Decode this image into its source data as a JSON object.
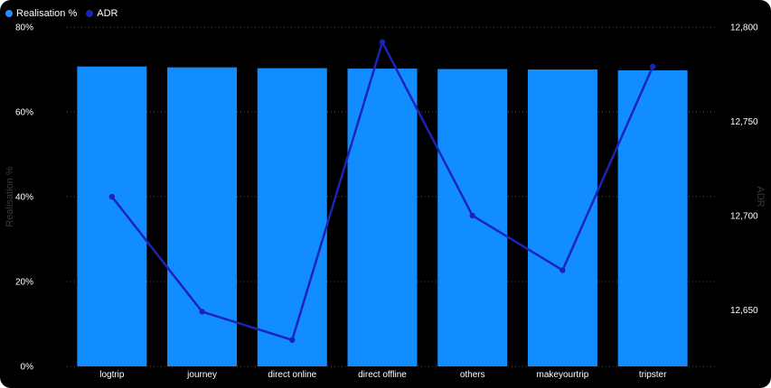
{
  "legend": {
    "items": [
      {
        "label": "Realisation %",
        "color": "#2b8cf6"
      },
      {
        "label": "ADR",
        "color": "#1c23b7"
      }
    ]
  },
  "colors": {
    "bar": "#118DFF",
    "line": "#1C23B7",
    "grid": "#555555",
    "background": "#000000",
    "text": "#ffffff"
  },
  "chart_data": {
    "type": "bar+line",
    "categories": [
      "logtrip",
      "journey",
      "direct online",
      "direct offline",
      "others",
      "makeyourtrip",
      "tripster"
    ],
    "series": [
      {
        "name": "Realisation %",
        "type": "bar",
        "axis": "left",
        "values": [
          70.7,
          70.5,
          70.3,
          70.2,
          70.1,
          70.0,
          69.8
        ]
      },
      {
        "name": "ADR",
        "type": "line",
        "axis": "right",
        "values": [
          12710,
          12649,
          12634,
          12792,
          12700,
          12671,
          12779
        ]
      }
    ],
    "y_left": {
      "label": "Realisation %",
      "range": [
        0,
        80
      ],
      "ticks": [
        0,
        20,
        40,
        60,
        80
      ],
      "tick_labels": [
        "0%",
        "20%",
        "40%",
        "60%",
        "80%"
      ]
    },
    "y_right": {
      "label": "ADR",
      "range": [
        12620,
        12800
      ],
      "ticks": [
        12650,
        12700,
        12750,
        12800
      ],
      "tick_labels": [
        "12,650",
        "12,700",
        "12,750",
        "12,800"
      ]
    },
    "grid": true,
    "legend_position": "top-left"
  }
}
